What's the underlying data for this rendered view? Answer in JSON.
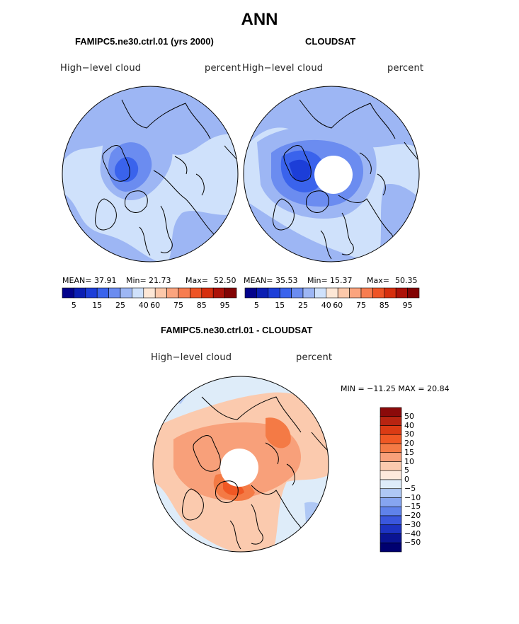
{
  "title": "ANN",
  "panels": {
    "model": {
      "title": "FAMIPC5.ne30.ctrl.01 (yrs 2000)",
      "variable": "High−level cloud",
      "units": "percent",
      "stats": {
        "mean_label": "MEAN=",
        "mean": "37.91",
        "min_label": "Min=",
        "min": "21.73",
        "max_label": "Max=",
        "max": "52.50"
      }
    },
    "obs": {
      "title": "CLOUDSAT",
      "variable": "High−level cloud",
      "units": "percent",
      "stats": {
        "mean_label": "MEAN=",
        "mean": "35.53",
        "min_label": "Min=",
        "min": "15.37",
        "max_label": "Max=",
        "max": "50.35"
      }
    },
    "diff": {
      "title": "FAMIPC5.ne30.ctrl.01 - CLOUDSAT",
      "variable": "High−level cloud",
      "units": "percent",
      "minmax_text": "MIN = −11.25 MAX =   20.84"
    }
  },
  "chart_data": [
    {
      "type": "heatmap",
      "title": "FAMIPC5.ne30.ctrl.01 (yrs 2000)",
      "subtitle": "High−level cloud (percent)",
      "projection": "north polar stereographic",
      "mean": 37.91,
      "min": 21.73,
      "max": 52.5,
      "colorbar_ticks": [
        "5",
        "15",
        "25",
        "40",
        "60",
        "75",
        "85",
        "95"
      ],
      "colorbar_colors": [
        "#03038b",
        "#0b1fb3",
        "#1c3ed8",
        "#3a63ec",
        "#6b8cf0",
        "#9db6f4",
        "#cfe1fb",
        "#fde7d6",
        "#fcc8aa",
        "#fba47e",
        "#f77d50",
        "#ee5426",
        "#d62f0e",
        "#ac1208",
        "#820303"
      ]
    },
    {
      "type": "heatmap",
      "title": "CLOUDSAT",
      "subtitle": "High−level cloud (percent)",
      "projection": "north polar stereographic",
      "mean": 35.53,
      "min": 15.37,
      "max": 50.35,
      "colorbar_ticks": [
        "5",
        "15",
        "25",
        "40",
        "60",
        "75",
        "85",
        "95"
      ],
      "colorbar_colors": [
        "#03038b",
        "#0b1fb3",
        "#1c3ed8",
        "#3a63ec",
        "#6b8cf0",
        "#9db6f4",
        "#cfe1fb",
        "#fde7d6",
        "#fcc8aa",
        "#fba47e",
        "#f77d50",
        "#ee5426",
        "#d62f0e",
        "#ac1208",
        "#820303"
      ]
    },
    {
      "type": "heatmap",
      "title": "FAMIPC5.ne30.ctrl.01 - CLOUDSAT",
      "subtitle": "High−level cloud (percent)",
      "projection": "north polar stereographic",
      "min": -11.25,
      "max": 20.84,
      "colorbar_ticks": [
        "50",
        "40",
        "30",
        "20",
        "15",
        "10",
        "5",
        "0",
        "−5",
        "−10",
        "−15",
        "−20",
        "−30",
        "−40",
        "−50"
      ],
      "colorbar_colors": [
        "#8b0a0a",
        "#b82411",
        "#db3b14",
        "#f05824",
        "#f47a45",
        "#f8a07a",
        "#fbcaae",
        "#fde9dc",
        "#deecf9",
        "#afc8f5",
        "#86a5f0",
        "#5f82ea",
        "#3a57dd",
        "#1d33c2",
        "#0a1493",
        "#000070"
      ]
    }
  ],
  "colors": {
    "landline": "#000000",
    "ocean_blue_light": "#cfe1fb",
    "ocean_blue_mid": "#9db6f4",
    "ocean_blue_dark": "#6b8cf0",
    "diff_warm": "#f8a07a",
    "diff_cool": "#deecf9"
  }
}
